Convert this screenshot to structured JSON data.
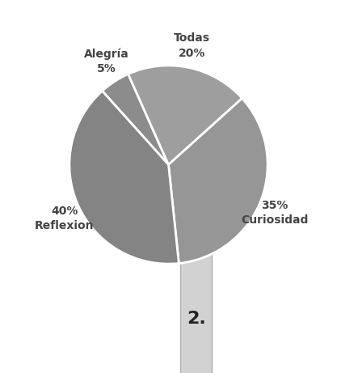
{
  "chart_data": {
    "type": "pie",
    "categories": [
      "Alegría",
      "Todas",
      "Curiosidad",
      "Reflexion"
    ],
    "values": [
      5,
      20,
      35,
      40
    ],
    "value_labels": [
      "5%",
      "20%",
      "35%",
      "40%"
    ],
    "colors": [
      "#8c8c8c",
      "#9e9e9e",
      "#969696",
      "#848484"
    ],
    "annotation": "2."
  }
}
